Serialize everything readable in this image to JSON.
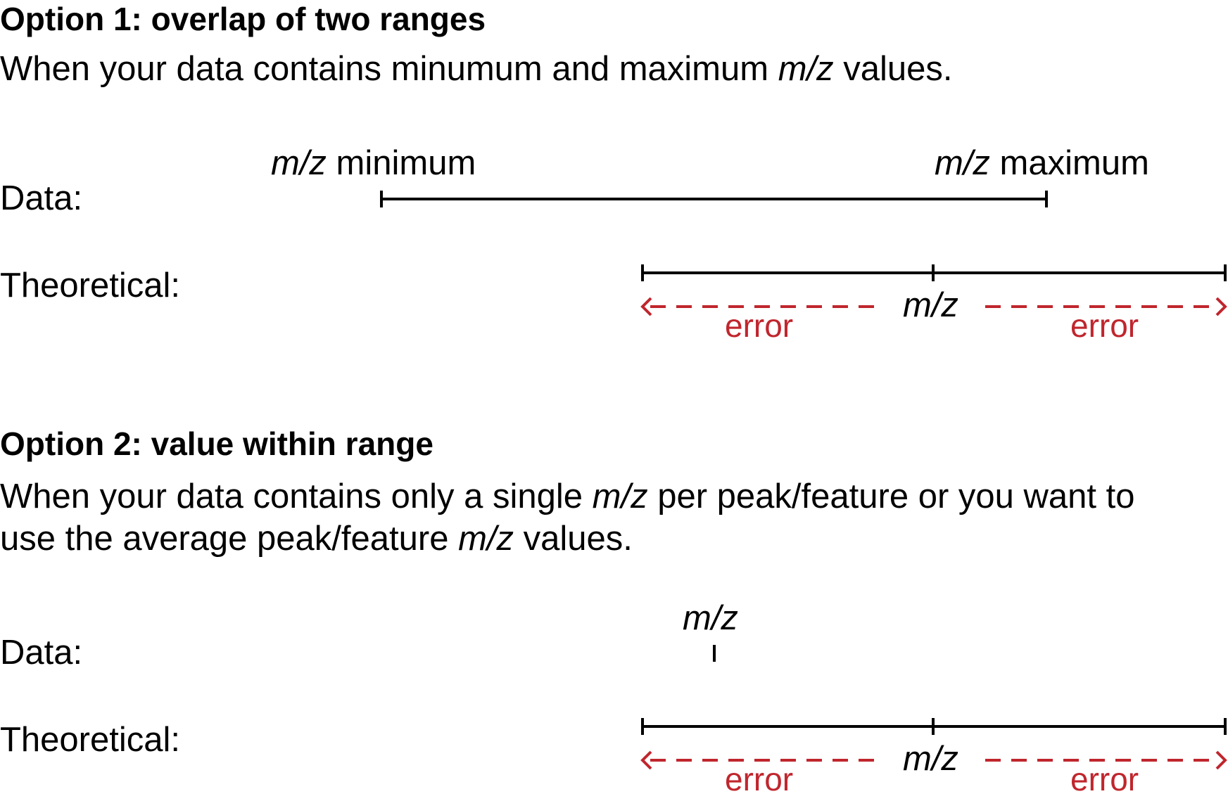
{
  "option1": {
    "heading": "Option 1: overlap of two ranges",
    "desc_before": "When your data contains minumum and maximum ",
    "desc_mz": "m/z",
    "desc_after": " values.",
    "data_label": "Data:",
    "theoretical_label": "Theoretical:",
    "min_mz": "m/z",
    "min_word": " minimum",
    "max_mz": "m/z",
    "max_word": " maximum",
    "center_mz": "m/z",
    "error_left": "error",
    "error_right": "error"
  },
  "option2": {
    "heading": "Option 2: value within range",
    "line1_before": "When your data contains only a single ",
    "line1_mz": "m/z",
    "line1_after": " per peak/feature or you want to",
    "line2_before": "use the average peak/feature ",
    "line2_mz": "m/z",
    "line2_after": " values.",
    "data_label": "Data:",
    "point_mz": "m/z",
    "theoretical_label": "Theoretical:",
    "center_mz": "m/z",
    "error_left": "error",
    "error_right": "error"
  },
  "colors": {
    "line": "#000000",
    "error": "#c0262d"
  }
}
